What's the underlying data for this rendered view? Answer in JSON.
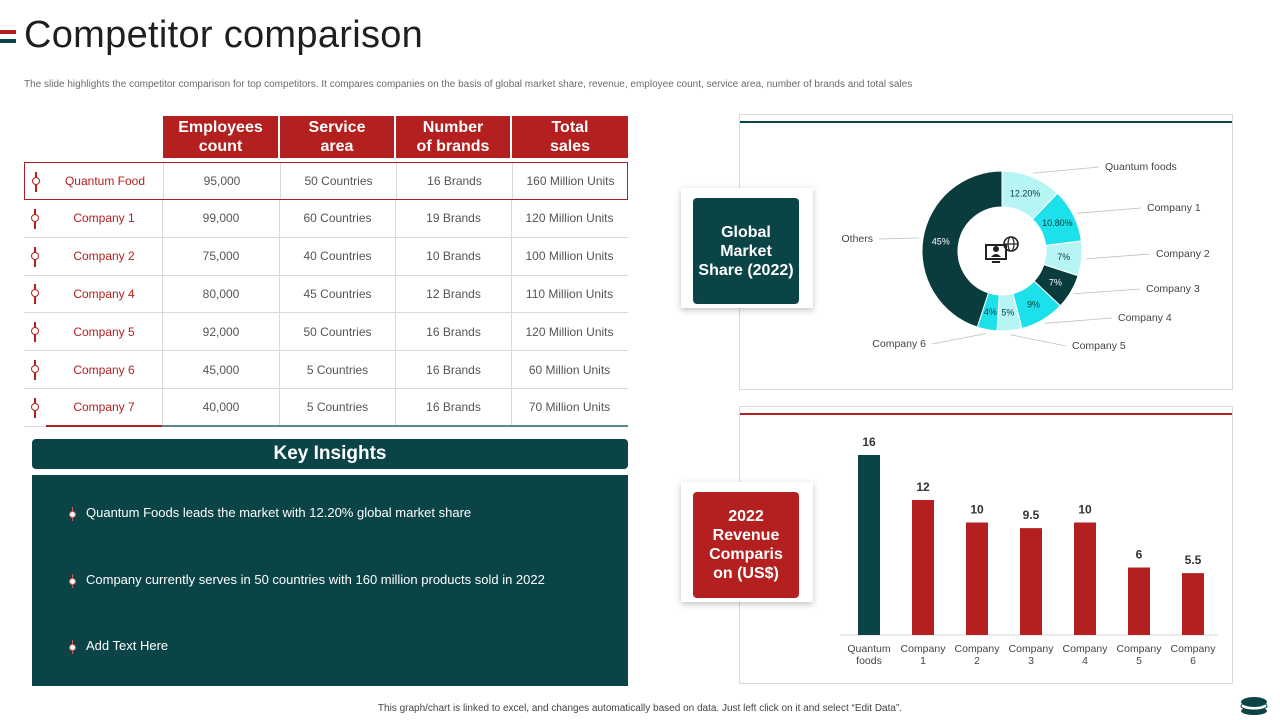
{
  "page": {
    "title": "Competitor comparison",
    "subtitle": "The slide highlights the competitor comparison for top competitors. It compares companies on the basis of global market share, revenue, employee count, service area, number of brands and total sales",
    "footer": "This graph/chart is linked to excel, and changes automatically based on data. Just left click on it and select “Edit Data”.",
    "accent_red": "#b3201f",
    "accent_teal": "#0b4447"
  },
  "table": {
    "headers": [
      "Employees\ncount",
      "Service\narea",
      "Number\nof brands",
      "Total\nsales"
    ],
    "rows": [
      {
        "name": "Quantum Food",
        "employees": "95,000",
        "area": "50 Countries",
        "brands": "16 Brands",
        "sales": "160 Million Units"
      },
      {
        "name": "Company 1",
        "employees": "99,000",
        "area": "60 Countries",
        "brands": "19 Brands",
        "sales": "120 Million Units"
      },
      {
        "name": "Company 2",
        "employees": "75,000",
        "area": "40 Countries",
        "brands": "10 Brands",
        "sales": "100 Million Units"
      },
      {
        "name": "Company 4",
        "employees": "80,000",
        "area": "45 Countries",
        "brands": "12 Brands",
        "sales": "110 Million Units"
      },
      {
        "name": "Company 5",
        "employees": "92,000",
        "area": "50 Countries",
        "brands": "16 Brands",
        "sales": "120 Million Units"
      },
      {
        "name": "Company 6",
        "employees": "45,000",
        "area": "5 Countries",
        "brands": "16 Brands",
        "sales": "60 Million Units"
      },
      {
        "name": "Company 7",
        "employees": "40,000",
        "area": "5 Countries",
        "brands": "16 Brands",
        "sales": "70 Million Units"
      }
    ]
  },
  "insights": {
    "title": "Key Insights",
    "items": [
      "Quantum Foods leads the market with 12.20% global market share",
      "Company currently serves in 50 countries with 160 million products sold in 2022",
      "Add Text Here"
    ]
  },
  "market_badge": "Global\nMarket\nShare (2022)",
  "revenue_badge": "2022\nRevenue\nComparis\non (US$)",
  "center_icon": "user-globe-icon",
  "chart_data": [
    {
      "type": "pie",
      "title": "",
      "variant": "donut",
      "slices": [
        {
          "name": "Quantum foods",
          "value": 12.2,
          "label": "12.20%",
          "color": "#b7f5f5"
        },
        {
          "name": "Company 1",
          "value": 10.8,
          "label": "10.80%",
          "color": "#1ce0ea"
        },
        {
          "name": "Company 2",
          "value": 7,
          "label": "7%",
          "color": "#b7f5f5"
        },
        {
          "name": "Company 3",
          "value": 7,
          "label": "7%",
          "color": "#0b3c3d"
        },
        {
          "name": "Company 4",
          "value": 9,
          "label": "9%",
          "color": "#1ce0ea"
        },
        {
          "name": "Company 5",
          "value": 5,
          "label": "5%",
          "color": "#b7f5f5"
        },
        {
          "name": "Company 6",
          "value": 4,
          "label": "4%",
          "color": "#1ce0ea"
        },
        {
          "name": "Others",
          "value": 45,
          "label": "45%",
          "color": "#0b3c3d"
        }
      ]
    },
    {
      "type": "bar",
      "title": "",
      "categories": [
        "Quantum\nfoods",
        "Company\n1",
        "Company\n2",
        "Company\n3",
        "Company\n4",
        "Company\n5",
        "Company\n6"
      ],
      "values": [
        16,
        12,
        10,
        9.5,
        10,
        6,
        5.5
      ],
      "value_labels": [
        "16",
        "12",
        "10",
        "9.5",
        "10",
        "6",
        "5.5"
      ],
      "colors": [
        "#0b4447",
        "#b3201f",
        "#b3201f",
        "#b3201f",
        "#b3201f",
        "#b3201f",
        "#b3201f"
      ],
      "ylim": [
        0,
        16
      ],
      "grid": false,
      "xlabel": "",
      "ylabel": ""
    }
  ]
}
